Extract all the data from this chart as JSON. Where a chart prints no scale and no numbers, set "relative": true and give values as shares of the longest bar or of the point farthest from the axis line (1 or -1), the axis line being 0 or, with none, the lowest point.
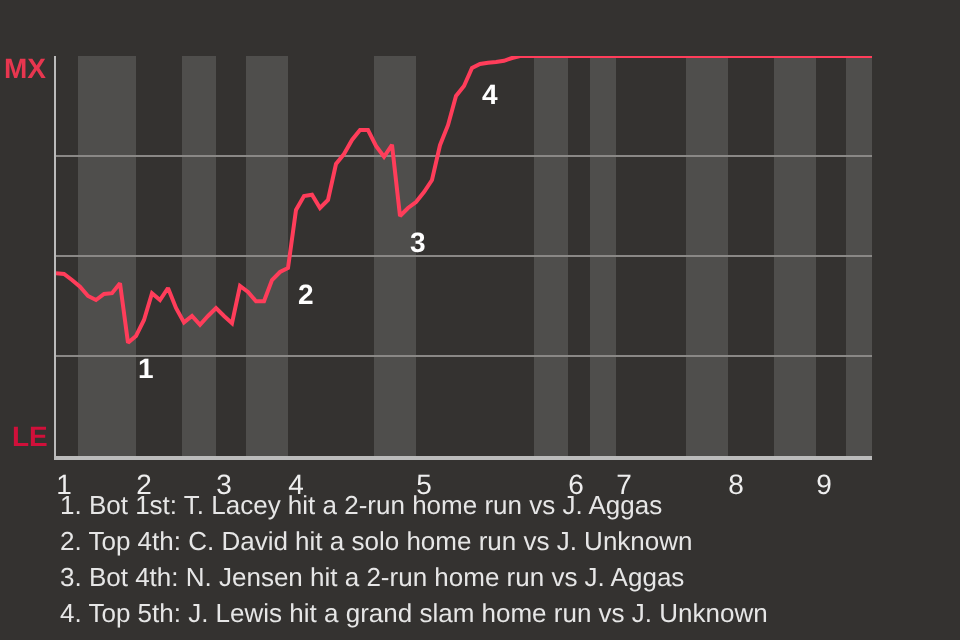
{
  "chart_data": {
    "type": "line",
    "relative": true,
    "categories": [
      null,
      "1",
      null,
      null,
      null,
      null,
      null,
      null,
      null,
      null,
      null,
      "2",
      null,
      null,
      null,
      null,
      null,
      null,
      null,
      null,
      null,
      "3",
      null,
      null,
      null,
      null,
      null,
      null,
      null,
      null,
      "4",
      null,
      null,
      null,
      null,
      null,
      null,
      null,
      null,
      null,
      null,
      null,
      null,
      null,
      null,
      null,
      "5",
      null,
      null,
      null,
      null,
      null,
      null,
      null,
      null,
      null,
      null,
      null,
      null,
      null,
      null,
      null,
      null,
      null,
      null,
      "6",
      null,
      null,
      null,
      null,
      null,
      "7",
      null,
      null,
      null,
      null,
      null,
      null,
      null,
      null,
      null,
      null,
      null,
      null,
      null,
      "8",
      null,
      null,
      null,
      null,
      null,
      null,
      null,
      null,
      null,
      null,
      "9",
      null,
      null,
      null,
      null,
      null,
      null
    ],
    "series": [
      {
        "color": "#ff3d5a",
        "values": [
          0.457,
          0.455,
          0.44,
          0.423,
          0.4,
          0.39,
          0.405,
          0.407,
          0.432,
          0.283,
          0.3,
          0.34,
          0.407,
          0.39,
          0.42,
          0.37,
          0.334,
          0.35,
          0.328,
          0.35,
          0.37,
          0.35,
          0.332,
          0.425,
          0.41,
          0.387,
          0.387,
          0.44,
          0.46,
          0.47,
          0.615,
          0.65,
          0.653,
          0.62,
          0.64,
          0.73,
          0.755,
          0.79,
          0.815,
          0.815,
          0.775,
          0.748,
          0.778,
          0.6,
          0.62,
          0.635,
          0.66,
          0.69,
          0.777,
          0.827,
          0.9,
          0.925,
          0.97,
          0.98,
          0.983,
          0.985,
          0.988,
          0.995,
          1,
          1,
          1,
          1,
          1,
          1,
          1,
          1,
          1,
          1,
          1,
          1,
          1,
          1,
          1,
          1,
          1,
          1,
          1,
          1,
          1,
          1,
          1,
          1,
          1,
          1,
          1,
          1,
          1,
          1,
          1,
          1,
          1,
          1,
          1,
          1,
          1,
          1,
          1,
          1,
          1,
          1,
          1,
          1,
          1
        ]
      }
    ],
    "grid": "y",
    "marker": "none",
    "line_style": "solid",
    "annotations": [
      "MX",
      "LE",
      "1",
      "2",
      "3",
      "4",
      "1. Bot 1st: T. Lacey hit a 2-run home run vs J. Aggas",
      "2. Top 4th: C. David hit a solo home run vs J. Unknown",
      "3. Bot 4th: N. Jensen hit a 2-run home run vs J. Aggas",
      "4. Top 5th: J. Lewis hit a grand slam home run vs J. Unknown"
    ]
  }
}
